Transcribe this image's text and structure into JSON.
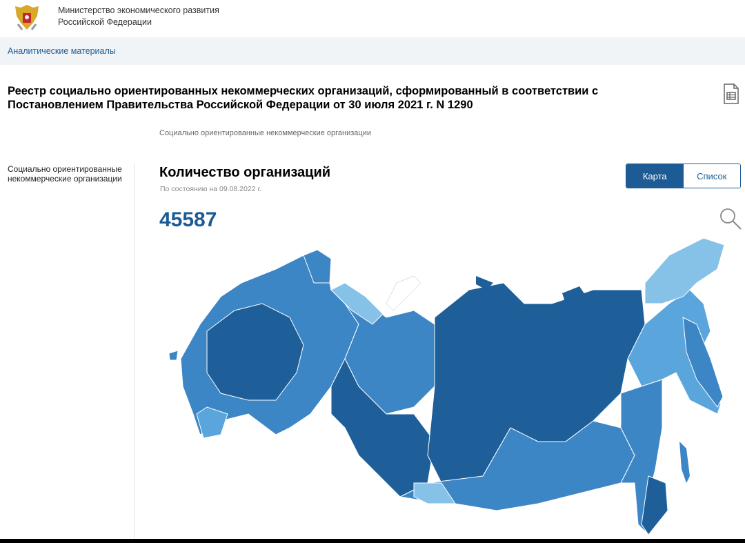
{
  "header": {
    "ministry_line1": "Министерство экономического развития",
    "ministry_line2": "Российской Федерации"
  },
  "breadcrumb": {
    "label": "Аналитические материалы"
  },
  "page": {
    "title": "Реестр социально ориентированных некоммерческих организаций, сформированный в соответствии с Постановлением Правительства Российской Федерации от 30 июля 2021 г. N 1290",
    "subnav": "Социально ориентированные некоммерческие организации"
  },
  "sidebar": {
    "items": [
      {
        "label": "Социально ориентированные некоммерческие организации"
      }
    ]
  },
  "main": {
    "heading": "Количество организаций",
    "as_of": "По состоянию на 09.08.2022 г.",
    "count": "45587"
  },
  "view_toggle": {
    "map_label": "Карта",
    "list_label": "Список",
    "active": "Карта"
  },
  "colors": {
    "accent": "#1d5b94",
    "dark": "#1f5f99",
    "mid": "#3d86c6",
    "light": "#5aa6dc",
    "pale": "#86c1e8"
  },
  "icons": {
    "doc": "spreadsheet-doc-icon",
    "search": "search-icon"
  }
}
